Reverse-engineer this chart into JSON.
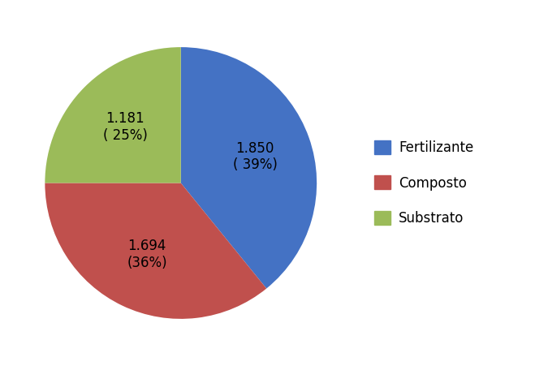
{
  "labels": [
    "Fertilizante",
    "Composto",
    "Substrato"
  ],
  "values": [
    1850,
    1694,
    1181
  ],
  "percentages": [
    39,
    36,
    25
  ],
  "display_values": [
    "1.850",
    "1.694",
    "1.181"
  ],
  "colors": [
    "#4472C4",
    "#C0504D",
    "#9BBB59"
  ],
  "label_texts": [
    "1.850\n( 39%)",
    "1.694\n(36%)",
    "1.181\n( 25%)"
  ],
  "legend_labels": [
    "Fertilizante",
    "Composto",
    "Substrato"
  ],
  "background_color": "#FFFFFF",
  "startangle": 90,
  "text_fontsize": 12,
  "legend_fontsize": 12
}
